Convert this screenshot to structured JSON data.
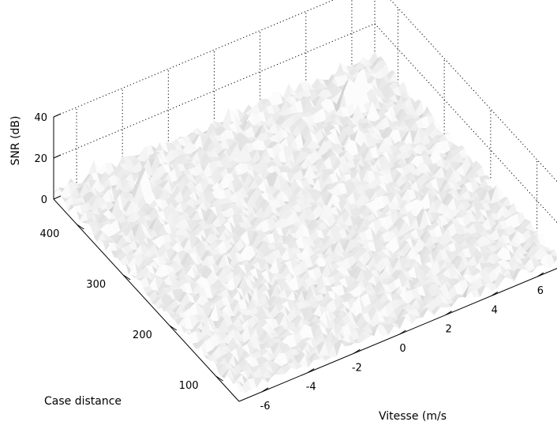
{
  "chart_data": {
    "type": "surface",
    "title": "",
    "xlabel": "Vitesse (m/s",
    "ylabel": "Case distance",
    "zlabel": "SNR (dB)",
    "x_ticks": [
      "-6",
      "-4",
      "-2",
      "0",
      "2",
      "4",
      "6"
    ],
    "y_ticks": [
      "100",
      "200",
      "300",
      "400"
    ],
    "z_ticks": [
      "0",
      "20",
      "40"
    ],
    "xlim": [
      -7,
      7
    ],
    "ylim": [
      50,
      450
    ],
    "zlim": [
      0,
      40
    ],
    "grid": true,
    "colormap": "gray",
    "surface_color": "#eeeeee",
    "noise_floor_db": 5,
    "peaks": [
      {
        "x": -4.3,
        "y": 390,
        "snr_db": 13
      },
      {
        "x": 4.8,
        "y": 395,
        "snr_db": 16
      },
      {
        "x": 5.4,
        "y": 400,
        "snr_db": 13
      }
    ]
  }
}
